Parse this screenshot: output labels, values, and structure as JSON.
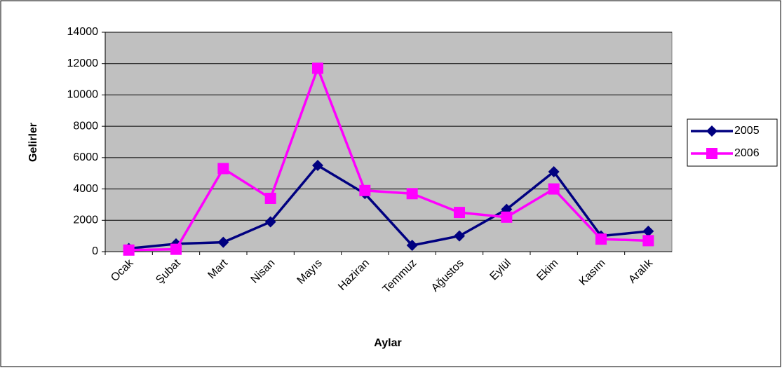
{
  "chart_data": {
    "type": "line",
    "xlabel": "Aylar",
    "ylabel": "Gelirler",
    "categories": [
      "Ocak",
      "Şubat",
      "Mart",
      "Nisan",
      "Mayıs",
      "Haziran",
      "Temmuz",
      "Ağustos",
      "Eylül",
      "Ekim",
      "Kasım",
      "Aralık"
    ],
    "series": [
      {
        "name": "2005",
        "color": "#000080",
        "marker": "diamond",
        "values": [
          200,
          500,
          600,
          1900,
          5500,
          3700,
          400,
          1000,
          2700,
          5100,
          1000,
          1300
        ]
      },
      {
        "name": "2006",
        "color": "#ff00ff",
        "marker": "square",
        "values": [
          100,
          150,
          5300,
          3400,
          11700,
          3900,
          3700,
          2500,
          2200,
          4000,
          800,
          700
        ]
      }
    ],
    "ylim": [
      0,
      14000
    ],
    "yticks": [
      0,
      2000,
      4000,
      6000,
      8000,
      10000,
      12000,
      14000
    ],
    "grid": true,
    "legend": "right"
  }
}
